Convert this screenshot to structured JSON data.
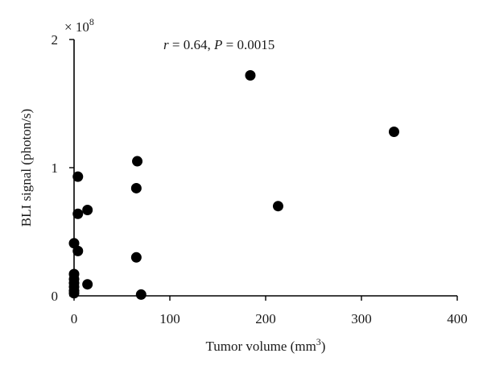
{
  "chart_data": {
    "type": "scatter",
    "xlabel": "Tumor volume (mm",
    "xlabel_sup": "3",
    "xlabel_tail": ")",
    "ylabel": "BLI signal (photon/s)",
    "y_multiplier": "× 10",
    "y_multiplier_exp": "8",
    "annotation": {
      "r_sym": "r",
      "r_text": " = 0.64, ",
      "p_sym": "P",
      "p_text": " = 0.0015"
    },
    "xlim": [
      0,
      400
    ],
    "ylim": [
      0,
      2
    ],
    "xticks": [
      0,
      100,
      200,
      300,
      400
    ],
    "yticks": [
      0,
      1,
      2
    ],
    "xtick_labels": [
      "0",
      "100",
      "200",
      "300",
      "400"
    ],
    "ytick_labels": [
      "0",
      "1",
      "2"
    ],
    "grid": false,
    "marker_color": "#000000",
    "points": [
      {
        "x": 0,
        "y": 0.02
      },
      {
        "x": 0,
        "y": 0.04
      },
      {
        "x": 0,
        "y": 0.07
      },
      {
        "x": 0,
        "y": 0.1
      },
      {
        "x": 0,
        "y": 0.13
      },
      {
        "x": 0,
        "y": 0.17
      },
      {
        "x": 0,
        "y": 0.41
      },
      {
        "x": 4,
        "y": 0.35
      },
      {
        "x": 4,
        "y": 0.64
      },
      {
        "x": 4,
        "y": 0.93
      },
      {
        "x": 14,
        "y": 0.09
      },
      {
        "x": 14,
        "y": 0.67
      },
      {
        "x": 65,
        "y": 0.3
      },
      {
        "x": 65,
        "y": 0.84
      },
      {
        "x": 66,
        "y": 1.05
      },
      {
        "x": 70,
        "y": 0.01
      },
      {
        "x": 184,
        "y": 1.72
      },
      {
        "x": 213,
        "y": 0.7
      },
      {
        "x": 334,
        "y": 1.28
      }
    ]
  }
}
